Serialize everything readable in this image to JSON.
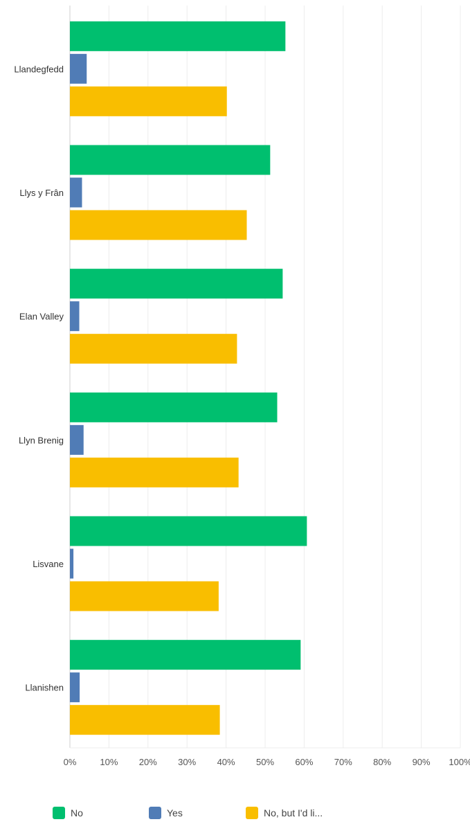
{
  "chart_data": {
    "type": "bar",
    "orientation": "horizontal",
    "categories": [
      "Llandegfedd",
      "Llys y Frân",
      "Elan Valley",
      "Llyn Brenig",
      "Lisvane",
      "Llanishen"
    ],
    "series": [
      {
        "name": "No",
        "color": "#00BF6F",
        "values": [
          55.2,
          51.3,
          54.5,
          53.1,
          60.7,
          59.1
        ]
      },
      {
        "name": "Yes",
        "color": "#507CB6",
        "values": [
          4.3,
          3.1,
          2.4,
          3.5,
          0.9,
          2.5
        ]
      },
      {
        "name": "No, but I'd li...",
        "color": "#F9BE00",
        "values": [
          40.2,
          45.3,
          42.8,
          43.2,
          38.1,
          38.4
        ]
      }
    ],
    "xlim": [
      0,
      100
    ],
    "xticks": [
      "0%",
      "10%",
      "20%",
      "30%",
      "40%",
      "50%",
      "60%",
      "70%",
      "80%",
      "90%",
      "100%"
    ],
    "grid": true,
    "legend_position": "bottom"
  },
  "colors": {
    "grid": "#ececec",
    "axis": "#cfcfcf"
  }
}
